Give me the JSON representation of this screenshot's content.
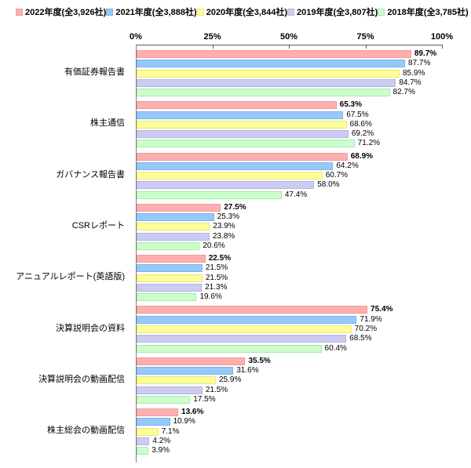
{
  "chart_data": {
    "type": "bar",
    "orientation": "horizontal",
    "title": "",
    "xlabel": "",
    "ylabel": "",
    "xlim": [
      0,
      100
    ],
    "x_ticks": [
      "0%",
      "25%",
      "50%",
      "75%",
      "100%"
    ],
    "x_tick_values": [
      0,
      25,
      50,
      75,
      100
    ],
    "grid": false,
    "legend_position": "top",
    "value_suffix": "%",
    "categories": [
      "有価証券報告書",
      "株主通信",
      "ガバナンス報告書",
      "CSRレポート",
      "アニュアルレポート(英語版)",
      "決算説明会の資料",
      "決算説明会の動画配信",
      "株主総会の動画配信"
    ],
    "series": [
      {
        "name": "2022年度(全3,926社)",
        "color": "#ffafaf",
        "border": "#f29a9a",
        "values": [
          89.7,
          65.3,
          68.9,
          27.5,
          22.5,
          75.4,
          35.5,
          13.6
        ]
      },
      {
        "name": "2021年度(全3,888社)",
        "color": "#95c9fa",
        "border": "#7db4ea",
        "values": [
          87.7,
          67.5,
          64.2,
          25.3,
          21.5,
          71.9,
          31.6,
          10.9
        ]
      },
      {
        "name": "2020年度(全3,844社)",
        "color": "#fefe98",
        "border": "#e7e77d",
        "values": [
          85.9,
          68.6,
          60.7,
          23.9,
          21.5,
          70.2,
          25.9,
          7.1
        ]
      },
      {
        "name": "2019年度(全3,807社)",
        "color": "#cccbf1",
        "border": "#b5b4e3",
        "values": [
          84.7,
          69.2,
          58.0,
          23.8,
          21.3,
          68.5,
          21.5,
          4.2
        ]
      },
      {
        "name": "2018年度(全3,785社)",
        "color": "#ccfecc",
        "border": "#a9e7a9",
        "values": [
          82.7,
          71.2,
          47.4,
          20.6,
          19.6,
          60.4,
          17.5,
          3.9
        ]
      }
    ]
  }
}
